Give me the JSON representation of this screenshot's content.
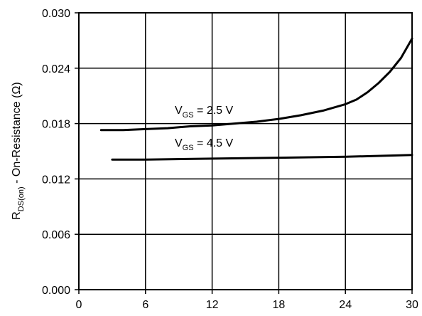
{
  "chart_data": {
    "type": "line",
    "xlabel": "",
    "ylabel_main": "R",
    "ylabel_sub": "DS(on)",
    "ylabel_rest": " - On-Resistance (Ω)",
    "xlim": [
      0,
      30
    ],
    "ylim": [
      0,
      0.03
    ],
    "x_ticks": [
      "0",
      "6",
      "12",
      "18",
      "24",
      "30"
    ],
    "y_ticks": [
      "0.000",
      "0.006",
      "0.012",
      "0.018",
      "0.024",
      "0.030"
    ],
    "grid": true,
    "series": [
      {
        "name_main": "V",
        "name_sub": "GS",
        "name_rest": " = 2.5 V",
        "points": [
          [
            2,
            0.0173
          ],
          [
            4,
            0.0173
          ],
          [
            6,
            0.0174
          ],
          [
            8,
            0.0175
          ],
          [
            10,
            0.0177
          ],
          [
            12,
            0.0178
          ],
          [
            14,
            0.018
          ],
          [
            16,
            0.0182
          ],
          [
            18,
            0.0185
          ],
          [
            20,
            0.0189
          ],
          [
            22,
            0.0194
          ],
          [
            24,
            0.0201
          ],
          [
            25,
            0.0206
          ],
          [
            26,
            0.0214
          ],
          [
            27,
            0.0224
          ],
          [
            28,
            0.0236
          ],
          [
            29,
            0.0251
          ],
          [
            30,
            0.0272
          ]
        ]
      },
      {
        "name_main": "V",
        "name_sub": "GS",
        "name_rest": " = 4.5 V",
        "points": [
          [
            3,
            0.0141
          ],
          [
            6,
            0.0141
          ],
          [
            12,
            0.0142
          ],
          [
            18,
            0.0143
          ],
          [
            24,
            0.0144
          ],
          [
            30,
            0.0146
          ]
        ]
      }
    ]
  }
}
